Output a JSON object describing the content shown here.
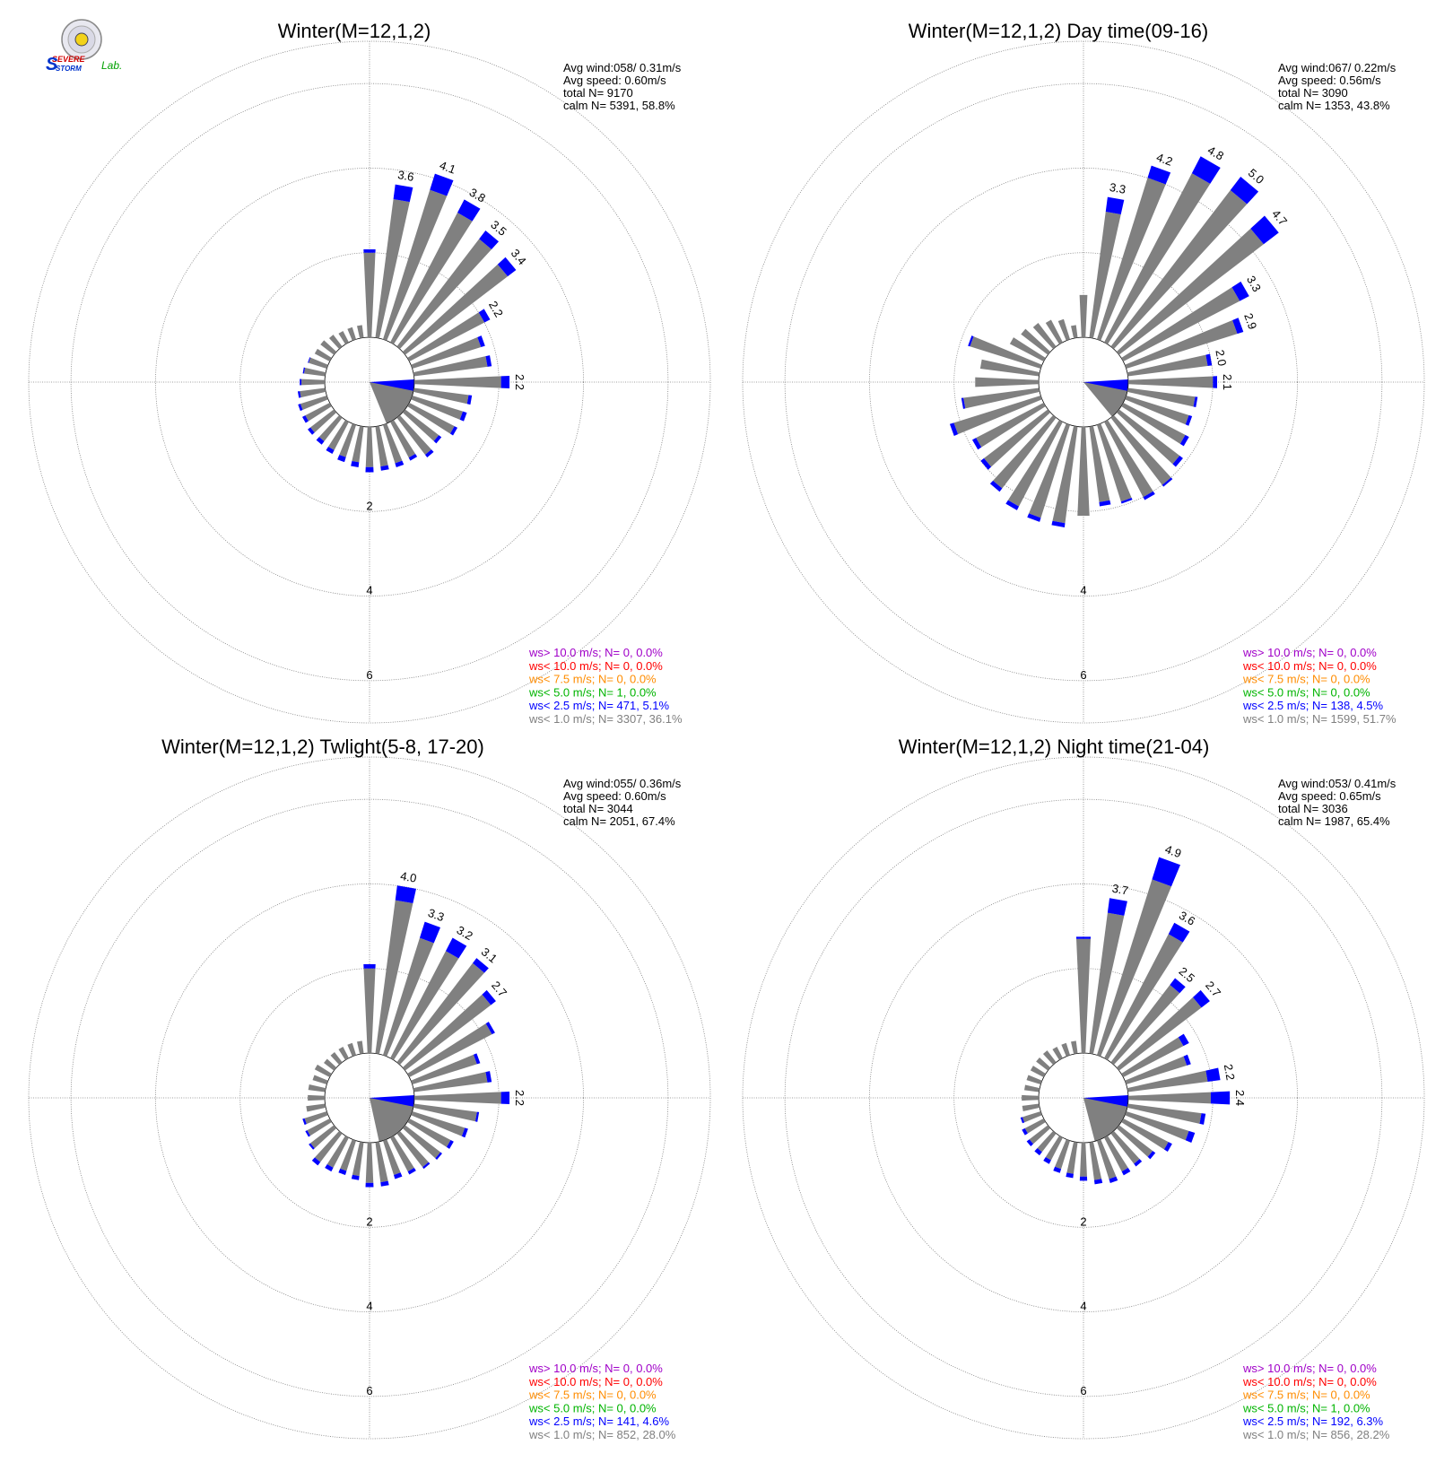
{
  "logo": {
    "top_text": "SEVERE",
    "bottom_text": "STORM",
    "lab_text": "Lab."
  },
  "colors": {
    "calm_wedge": "#808080",
    "ring": "#808080",
    "bins": {
      "ws_gt_10": "#a000c8",
      "ws_lt_10": "#ff0000",
      "ws_lt_7_5": "#ff8c00",
      "ws_lt_5": "#00b400",
      "ws_lt_2_5": "#0000ff",
      "ws_lt_1": "#808080"
    }
  },
  "chart_data": [
    {
      "type": "windrose",
      "title": "Winter(M=12,1,2)",
      "stats": [
        "Avg wind:058/ 0.31m/s",
        "Avg speed: 0.60m/s",
        "total N=      9170",
        "calm N=   5391,  58.8%"
      ],
      "rings": [
        2,
        4,
        6
      ],
      "rmax": 7,
      "calm_pct": 58.8,
      "avg_wind_dir": 58,
      "avg_wind_speed": 0.31,
      "legend": [
        {
          "text": "ws> 10.0 m/s; N=     0,  0.0%",
          "bin": "ws_gt_10"
        },
        {
          "text": "ws< 10.0 m/s; N=     0,  0.0%",
          "bin": "ws_lt_10"
        },
        {
          "text": "ws<  7.5 m/s; N=     0,  0.0%",
          "bin": "ws_lt_7_5"
        },
        {
          "text": "ws<  5.0 m/s; N=     1,  0.0%",
          "bin": "ws_lt_5"
        },
        {
          "text": "ws<  2.5 m/s; N=   471,  5.1%",
          "bin": "ws_lt_2_5"
        },
        {
          "text": "ws<  1.0 m/s; N=  3307, 36.1%",
          "bin": "ws_lt_1"
        }
      ],
      "directions": [
        0,
        10,
        20,
        30,
        40,
        50,
        60,
        70,
        80,
        90,
        100,
        110,
        120,
        130,
        140,
        150,
        160,
        170,
        180,
        190,
        200,
        210,
        220,
        230,
        240,
        250,
        260,
        270,
        280,
        290,
        300,
        310,
        320,
        330,
        340,
        350
      ],
      "gray": [
        2.0,
        3.3,
        3.7,
        3.45,
        3.2,
        3.05,
        2.0,
        1.7,
        1.75,
        2.05,
        1.3,
        1.25,
        1.2,
        1.0,
        1.1,
        0.95,
        0.95,
        0.95,
        0.95,
        0.85,
        0.8,
        0.75,
        0.7,
        0.7,
        0.65,
        0.65,
        0.6,
        0.55,
        0.5,
        0.45,
        0.4,
        0.4,
        0.35,
        0.3,
        0.3,
        0.3
      ],
      "blue": [
        0.08,
        0.35,
        0.4,
        0.35,
        0.25,
        0.25,
        0.15,
        0.1,
        0.1,
        0.2,
        0.08,
        0.1,
        0.08,
        0.08,
        0.08,
        0.08,
        0.1,
        0.1,
        0.12,
        0.12,
        0.12,
        0.1,
        0.1,
        0.08,
        0.08,
        0.06,
        0.05,
        0.04,
        0.03,
        0.02,
        0.0,
        0.0,
        0.0,
        0.0,
        0.0,
        0.0
      ],
      "labels": {
        "10": "3.6",
        "20": "4.1",
        "30": "3.8",
        "40": "3.5",
        "50": "3.4",
        "60": "2.2",
        "90": "2.2"
      }
    },
    {
      "type": "windrose",
      "title": "Winter(M=12,1,2) Day time(09-16)",
      "stats": [
        "Avg wind:067/ 0.22m/s",
        "Avg speed: 0.56m/s",
        "total N=      3090",
        "calm N=   1353,  43.8%"
      ],
      "rings": [
        2,
        4,
        6
      ],
      "rmax": 7,
      "calm_pct": 43.8,
      "avg_wind_dir": 67,
      "avg_wind_speed": 0.22,
      "legend": [
        {
          "text": "ws> 10.0 m/s; N=     0,  0.0%",
          "bin": "ws_gt_10"
        },
        {
          "text": "ws< 10.0 m/s; N=     0,  0.0%",
          "bin": "ws_lt_10"
        },
        {
          "text": "ws<  7.5 m/s; N=     0,  0.0%",
          "bin": "ws_lt_7_5"
        },
        {
          "text": "ws<  5.0 m/s; N=     0,  0.0%",
          "bin": "ws_lt_5"
        },
        {
          "text": "ws<  2.5 m/s; N=   138,  4.5%",
          "bin": "ws_lt_2_5"
        },
        {
          "text": "ws<  1.0 m/s; N=  1599, 51.7%",
          "bin": "ws_lt_1"
        }
      ],
      "directions": [
        0,
        10,
        20,
        30,
        40,
        50,
        60,
        70,
        80,
        90,
        100,
        110,
        120,
        130,
        140,
        150,
        160,
        170,
        180,
        190,
        200,
        210,
        220,
        230,
        240,
        250,
        260,
        270,
        280,
        290,
        300,
        310,
        320,
        330,
        340,
        350
      ],
      "gray": [
        1.0,
        3.0,
        4.0,
        4.5,
        4.65,
        4.3,
        3.1,
        2.75,
        1.9,
        2.0,
        1.6,
        1.55,
        1.65,
        1.8,
        2.0,
        2.0,
        1.9,
        1.8,
        2.1,
        2.3,
        2.3,
        2.25,
        2.1,
        1.9,
        1.8,
        2.15,
        1.8,
        1.5,
        1.4,
        1.75,
        0.9,
        0.8,
        0.7,
        0.6,
        0.5,
        0.3
      ],
      "blue": [
        0.0,
        0.35,
        0.3,
        0.45,
        0.4,
        0.45,
        0.25,
        0.15,
        0.1,
        0.1,
        0.06,
        0.08,
        0.1,
        0.1,
        0.05,
        0.08,
        0.05,
        0.1,
        0.0,
        0.1,
        0.1,
        0.1,
        0.1,
        0.1,
        0.1,
        0.1,
        0.05,
        0.0,
        0.0,
        0.05,
        0.0,
        0.0,
        0.0,
        0.0,
        0.0,
        0.0
      ],
      "labels": {
        "10": "3.3",
        "20": "4.2",
        "30": "4.8",
        "40": "5.0",
        "50": "4.7",
        "60": "3.3",
        "70": "2.9",
        "80": "2.0",
        "90": "2.1"
      }
    },
    {
      "type": "windrose",
      "title": "Winter(M=12,1,2) Twlight(5-8, 17-20)",
      "stats": [
        "Avg wind:055/ 0.36m/s",
        "Avg speed: 0.60m/s",
        "total N=      3044",
        "calm N=   2051,  67.4%"
      ],
      "rings": [
        2,
        4,
        6
      ],
      "rmax": 7,
      "calm_pct": 67.4,
      "avg_wind_dir": 55,
      "avg_wind_speed": 0.36,
      "legend": [
        {
          "text": "ws> 10.0 m/s; N=     0,  0.0%",
          "bin": "ws_gt_10"
        },
        {
          "text": "ws< 10.0 m/s; N=     0,  0.0%",
          "bin": "ws_lt_10"
        },
        {
          "text": "ws<  7.5 m/s; N=     0,  0.0%",
          "bin": "ws_lt_7_5"
        },
        {
          "text": "ws<  5.0 m/s; N=     0,  0.0%",
          "bin": "ws_lt_5"
        },
        {
          "text": "ws<  2.5 m/s; N=   141,  4.6%",
          "bin": "ws_lt_2_5"
        },
        {
          "text": "ws<  1.0 m/s; N=   852, 28.0%",
          "bin": "ws_lt_1"
        }
      ],
      "directions": [
        0,
        10,
        20,
        30,
        40,
        50,
        60,
        70,
        80,
        90,
        100,
        110,
        120,
        130,
        140,
        150,
        160,
        170,
        180,
        190,
        200,
        210,
        220,
        230,
        240,
        250,
        260,
        270,
        280,
        290,
        300,
        310,
        320,
        330,
        340,
        350
      ],
      "gray": [
        2.0,
        3.65,
        2.9,
        2.85,
        2.95,
        2.55,
        2.2,
        1.6,
        1.75,
        2.05,
        1.5,
        1.3,
        1.1,
        1.05,
        1.0,
        0.9,
        0.85,
        0.95,
        0.95,
        0.8,
        0.75,
        0.8,
        0.85,
        0.7,
        0.6,
        0.55,
        0.45,
        0.4,
        0.4,
        0.35,
        0.4,
        0.3,
        0.3,
        0.3,
        0.3,
        0.3
      ],
      "blue": [
        0.1,
        0.35,
        0.4,
        0.35,
        0.15,
        0.15,
        0.08,
        0.08,
        0.1,
        0.2,
        0.05,
        0.08,
        0.08,
        0.05,
        0.05,
        0.08,
        0.1,
        0.1,
        0.1,
        0.1,
        0.1,
        0.1,
        0.1,
        0.05,
        0.05,
        0.05,
        0.0,
        0.0,
        0.0,
        0.0,
        0.0,
        0.0,
        0.0,
        0.0,
        0.0,
        0.0
      ],
      "labels": {
        "10": "4.0",
        "20": "3.3",
        "30": "3.2",
        "40": "3.1",
        "50": "2.7",
        "90": "2.2"
      }
    },
    {
      "type": "windrose",
      "title": "Winter(M=12,1,2) Night time(21-04)",
      "stats": [
        "Avg wind:053/ 0.41m/s",
        "Avg speed: 0.65m/s",
        "total N=      3036",
        "calm N=   1987,  65.4%"
      ],
      "rings": [
        2,
        4,
        6
      ],
      "rmax": 7,
      "calm_pct": 65.4,
      "avg_wind_dir": 53,
      "avg_wind_speed": 0.41,
      "legend": [
        {
          "text": "ws> 10.0 m/s; N=     0,  0.0%",
          "bin": "ws_gt_10"
        },
        {
          "text": "ws< 10.0 m/s; N=     0,  0.0%",
          "bin": "ws_lt_10"
        },
        {
          "text": "ws<  7.5 m/s; N=     0,  0.0%",
          "bin": "ws_lt_7_5"
        },
        {
          "text": "ws<  5.0 m/s; N=     1,  0.0%",
          "bin": "ws_lt_5"
        },
        {
          "text": "ws<  2.5 m/s; N=   192,  6.3%",
          "bin": "ws_lt_2_5"
        },
        {
          "text": "ws<  1.0 m/s; N=   856, 28.2%",
          "bin": "ws_lt_1"
        }
      ],
      "directions": [
        0,
        10,
        20,
        30,
        40,
        50,
        60,
        70,
        80,
        90,
        100,
        110,
        120,
        130,
        140,
        150,
        160,
        170,
        180,
        190,
        200,
        210,
        220,
        230,
        240,
        250,
        260,
        270,
        280,
        290,
        300,
        310,
        320,
        330,
        340,
        350
      ],
      "gray": [
        2.7,
        3.35,
        4.35,
        3.3,
        2.3,
        2.45,
        1.6,
        1.5,
        1.9,
        1.95,
        1.75,
        1.55,
        1.2,
        1.0,
        0.9,
        0.9,
        0.95,
        0.9,
        0.8,
        0.75,
        0.7,
        0.6,
        0.55,
        0.55,
        0.5,
        0.45,
        0.4,
        0.4,
        0.35,
        0.35,
        0.35,
        0.35,
        0.35,
        0.3,
        0.3,
        0.3
      ],
      "blue": [
        0.05,
        0.35,
        0.55,
        0.3,
        0.2,
        0.25,
        0.15,
        0.1,
        0.3,
        0.45,
        0.1,
        0.15,
        0.1,
        0.08,
        0.08,
        0.1,
        0.1,
        0.1,
        0.1,
        0.1,
        0.1,
        0.1,
        0.1,
        0.08,
        0.08,
        0.05,
        0.0,
        0.0,
        0.0,
        0.0,
        0.0,
        0.0,
        0.0,
        0.0,
        0.0,
        0.0
      ],
      "labels": {
        "10": "3.7",
        "20": "4.9",
        "30": "3.6",
        "40": "2.5",
        "50": "2.7",
        "80": "2.2",
        "90": "2.4"
      }
    }
  ]
}
